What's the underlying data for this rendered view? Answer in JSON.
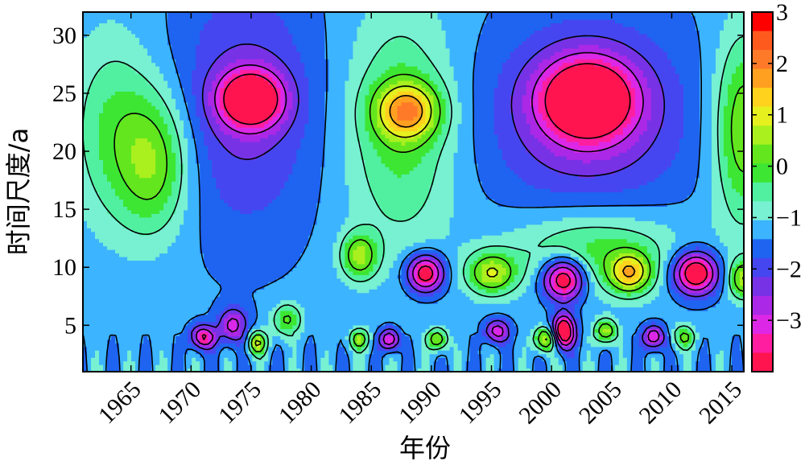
{
  "chart_data": {
    "type": "heatmap",
    "title": "",
    "xlabel": "年份",
    "ylabel": "时间尺度/a",
    "x_range": [
      1961,
      2016
    ],
    "y_range": [
      1,
      32
    ],
    "x_ticks": [
      1965,
      1970,
      1975,
      1980,
      1985,
      1990,
      1995,
      2000,
      2005,
      2010,
      2015
    ],
    "x_tick_labels": [
      "1965",
      "1970",
      "1975",
      "1980",
      "1985",
      "1990",
      "1995",
      "2000",
      "2005",
      "2010",
      "2015"
    ],
    "y_ticks": [
      5,
      10,
      15,
      20,
      25,
      30
    ],
    "y_tick_labels": [
      "5",
      "10",
      "15",
      "20",
      "25",
      "30"
    ],
    "colorbar": {
      "range": [
        -4,
        3
      ],
      "ticks": [
        3,
        2,
        1,
        0,
        -1,
        -2,
        -3
      ],
      "tick_labels": [
        "3",
        "2",
        "1",
        "0",
        "−1",
        "−2",
        "−3"
      ],
      "colors": [
        "#ff0000",
        "#ff5a1e",
        "#ff7a28",
        "#ffa020",
        "#ffd21e",
        "#e6f01e",
        "#aaf01e",
        "#64e61e",
        "#3ce632",
        "#50f0a0",
        "#78f0d2",
        "#3cb4ff",
        "#1e64f0",
        "#4646f0",
        "#7832e6",
        "#aa28e6",
        "#dc28e6",
        "#ff1ea0",
        "#ff1450"
      ]
    },
    "centers": [
      {
        "x": 1975.0,
        "y": 24.5,
        "value": -3.1,
        "sx": 2.6,
        "sy": 2.4
      },
      {
        "x": 1974.5,
        "y": 24.0,
        "value": -1.0,
        "sx": 6.0,
        "sy": 11.0
      },
      {
        "x": 1988.0,
        "y": 23.5,
        "value": 2.4,
        "sx": 2.6,
        "sy": 2.4
      },
      {
        "x": 1987.5,
        "y": 22.0,
        "value": 1.2,
        "sx": 4.5,
        "sy": 10.0
      },
      {
        "x": 1984.0,
        "y": 11.0,
        "value": 1.8,
        "sx": 1.5,
        "sy": 2.0
      },
      {
        "x": 2003.0,
        "y": 24.5,
        "value": -3.2,
        "sx": 3.8,
        "sy": 3.4
      },
      {
        "x": 2003.0,
        "y": 23.0,
        "value": -1.2,
        "sx": 8.5,
        "sy": 8.5
      },
      {
        "x": 1967.0,
        "y": 19.0,
        "value": 1.6,
        "sx": 3.0,
        "sy": 6.0
      },
      {
        "x": 1963.5,
        "y": 22.0,
        "value": 1.0,
        "sx": 3.5,
        "sy": 8.0
      },
      {
        "x": 2016.0,
        "y": 22.0,
        "value": 1.8,
        "sx": 2.5,
        "sy": 8.0
      },
      {
        "x": 1989.5,
        "y": 9.5,
        "value": -3.0,
        "sx": 1.5,
        "sy": 1.6
      },
      {
        "x": 1995.0,
        "y": 9.5,
        "value": 2.0,
        "sx": 2.0,
        "sy": 1.8
      },
      {
        "x": 2001.0,
        "y": 9.0,
        "value": -3.3,
        "sx": 1.7,
        "sy": 1.8
      },
      {
        "x": 2006.5,
        "y": 9.5,
        "value": 2.3,
        "sx": 1.7,
        "sy": 1.7
      },
      {
        "x": 2012.0,
        "y": 9.5,
        "value": -3.3,
        "sx": 1.8,
        "sy": 1.8
      },
      {
        "x": 2016.0,
        "y": 9.0,
        "value": 2.0,
        "sx": 1.2,
        "sy": 1.6
      },
      {
        "x": 2003.5,
        "y": 11.5,
        "value": 1.3,
        "sx": 7.0,
        "sy": 3.5
      },
      {
        "x": 1973.5,
        "y": 5.0,
        "value": -1.8,
        "sx": 1.2,
        "sy": 1.5
      },
      {
        "x": 1978.0,
        "y": 5.5,
        "value": 1.5,
        "sx": 1.2,
        "sy": 1.4
      },
      {
        "x": 1975.5,
        "y": 3.5,
        "value": 2.2,
        "sx": 0.8,
        "sy": 1.0
      },
      {
        "x": 1984.0,
        "y": 3.8,
        "value": 1.8,
        "sx": 0.8,
        "sy": 0.9
      },
      {
        "x": 1986.5,
        "y": 3.8,
        "value": -2.4,
        "sx": 0.8,
        "sy": 0.9
      },
      {
        "x": 1990.5,
        "y": 3.8,
        "value": 2.0,
        "sx": 0.8,
        "sy": 0.9
      },
      {
        "x": 1999.5,
        "y": 3.8,
        "value": 2.4,
        "sx": 0.9,
        "sy": 1.0
      },
      {
        "x": 2001.0,
        "y": 4.5,
        "value": -3.6,
        "sx": 0.9,
        "sy": 1.4
      },
      {
        "x": 2004.5,
        "y": 4.5,
        "value": 2.0,
        "sx": 0.9,
        "sy": 1.0
      },
      {
        "x": 2008.5,
        "y": 4.0,
        "value": -2.2,
        "sx": 0.9,
        "sy": 1.0
      },
      {
        "x": 2011.0,
        "y": 4.0,
        "value": 1.5,
        "sx": 0.9,
        "sy": 1.0
      },
      {
        "x": 1971.0,
        "y": 4.0,
        "value": -2.4,
        "sx": 1.0,
        "sy": 1.0
      },
      {
        "x": 1995.5,
        "y": 4.5,
        "value": -2.0,
        "sx": 1.0,
        "sy": 1.0
      }
    ]
  }
}
